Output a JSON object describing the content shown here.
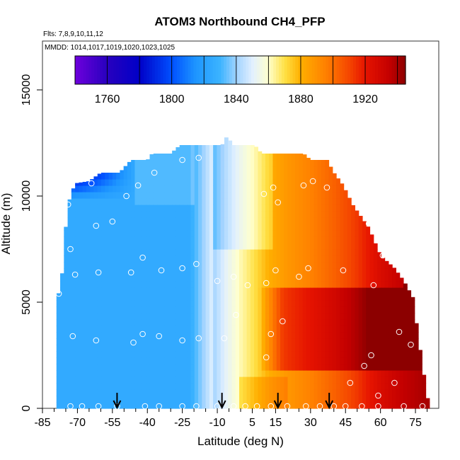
{
  "chart_data": {
    "type": "heatmap",
    "title": "ATOM3 Northbound CH4_PFP",
    "flights_label": "Flts: 7,8,9,10,11,12",
    "dates_label": "MMDD: 1014,1017,1019,1020,1023,1025",
    "xlabel": "Latitude (deg N)",
    "ylabel": "Altitude (m)",
    "xlim": [
      -85,
      85
    ],
    "ylim": [
      0,
      17300
    ],
    "x_tick_labels": [
      "-85",
      "-70",
      "-55",
      "-40",
      "-25",
      "-10",
      "5",
      "15",
      "30",
      "45",
      "60",
      "75"
    ],
    "y_tick_labels": [
      "0",
      "5000",
      "10000",
      "15000"
    ],
    "colorbar": {
      "min": 1740,
      "max": 1945,
      "tick_labels": [
        "1760",
        "1800",
        "1840",
        "1880",
        "1920"
      ],
      "tick_values": [
        1760,
        1800,
        1840,
        1880,
        1920
      ],
      "break_values": [
        1760,
        1780,
        1800,
        1820,
        1840,
        1860,
        1880,
        1900,
        1920,
        1940
      ]
    },
    "arrow_latitudes": [
      -53,
      -8,
      16,
      38
    ],
    "sample_points": [
      {
        "lat": -73,
        "alt": 100
      },
      {
        "lat": -68,
        "alt": 100
      },
      {
        "lat": -61,
        "alt": 100
      },
      {
        "lat": -53,
        "alt": 100
      },
      {
        "lat": -41,
        "alt": 100
      },
      {
        "lat": -35,
        "alt": 100
      },
      {
        "lat": -25,
        "alt": 100
      },
      {
        "lat": -19,
        "alt": 100
      },
      {
        "lat": -10,
        "alt": 100
      },
      {
        "lat": -3,
        "alt": 100
      },
      {
        "lat": 2,
        "alt": 100
      },
      {
        "lat": 7,
        "alt": 100
      },
      {
        "lat": 13,
        "alt": 100
      },
      {
        "lat": 20,
        "alt": 100
      },
      {
        "lat": 28,
        "alt": 100
      },
      {
        "lat": 34,
        "alt": 100
      },
      {
        "lat": 40,
        "alt": 100
      },
      {
        "lat": 45,
        "alt": 100
      },
      {
        "lat": 52,
        "alt": 100
      },
      {
        "lat": 59,
        "alt": 100
      },
      {
        "lat": 70,
        "alt": 100
      },
      {
        "lat": 78,
        "alt": 100
      },
      {
        "lat": -72,
        "alt": 3400
      },
      {
        "lat": -62,
        "alt": 3200
      },
      {
        "lat": -46,
        "alt": 3100
      },
      {
        "lat": -42,
        "alt": 3500
      },
      {
        "lat": -35,
        "alt": 3400
      },
      {
        "lat": -25,
        "alt": 3200
      },
      {
        "lat": -18,
        "alt": 3300
      },
      {
        "lat": -7,
        "alt": 3300
      },
      {
        "lat": -2,
        "alt": 4400
      },
      {
        "lat": 18,
        "alt": 4100
      },
      {
        "lat": 13,
        "alt": 3500
      },
      {
        "lat": 11,
        "alt": 2400
      },
      {
        "lat": 47,
        "alt": 1200
      },
      {
        "lat": 53,
        "alt": 2000
      },
      {
        "lat": 59,
        "alt": 600
      },
      {
        "lat": 66,
        "alt": 1200
      },
      {
        "lat": 73,
        "alt": 3000
      },
      {
        "lat": 68,
        "alt": 3600
      },
      {
        "lat": 56,
        "alt": 2500
      },
      {
        "lat": -78,
        "alt": 5400
      },
      {
        "lat": -71,
        "alt": 6300
      },
      {
        "lat": -61,
        "alt": 6400
      },
      {
        "lat": -47,
        "alt": 6400
      },
      {
        "lat": -42,
        "alt": 7100
      },
      {
        "lat": -34,
        "alt": 6500
      },
      {
        "lat": -25,
        "alt": 6600
      },
      {
        "lat": -19,
        "alt": 6800
      },
      {
        "lat": -10,
        "alt": 6000
      },
      {
        "lat": -3,
        "alt": 6200
      },
      {
        "lat": 3,
        "alt": 5800
      },
      {
        "lat": 11,
        "alt": 5900
      },
      {
        "lat": 15,
        "alt": 6500
      },
      {
        "lat": 25,
        "alt": 6200
      },
      {
        "lat": 29,
        "alt": 6600
      },
      {
        "lat": 44,
        "alt": 6500
      },
      {
        "lat": 57,
        "alt": 5800
      },
      {
        "lat": 61,
        "alt": 7200
      },
      {
        "lat": 71,
        "alt": 6600
      },
      {
        "lat": -73,
        "alt": 7500
      },
      {
        "lat": -74,
        "alt": 9600
      },
      {
        "lat": -62,
        "alt": 8600
      },
      {
        "lat": -55,
        "alt": 8800
      },
      {
        "lat": -49,
        "alt": 10000
      },
      {
        "lat": -44,
        "alt": 10500
      },
      {
        "lat": -37,
        "alt": 11100
      },
      {
        "lat": -25,
        "alt": 11700
      },
      {
        "lat": -18,
        "alt": 11800
      },
      {
        "lat": -64,
        "alt": 10600
      },
      {
        "lat": 10,
        "alt": 10100
      },
      {
        "lat": 14,
        "alt": 10400
      },
      {
        "lat": 16,
        "alt": 9700
      },
      {
        "lat": 27,
        "alt": 10500
      },
      {
        "lat": 31,
        "alt": 10700
      },
      {
        "lat": 37,
        "alt": 10400
      },
      {
        "lat": 39,
        "alt": 11800
      },
      {
        "lat": 50,
        "alt": 9800
      },
      {
        "lat": 55,
        "alt": 8700
      }
    ]
  }
}
